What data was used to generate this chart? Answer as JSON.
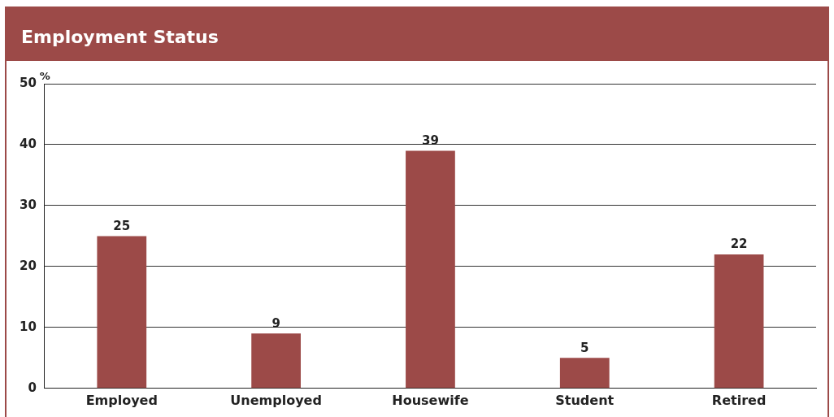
{
  "chart_data": {
    "type": "bar",
    "title": "Employment Status",
    "ylabel": "%",
    "categories": [
      "Employed",
      "Unemployed",
      "Housewife",
      "Student",
      "Retired"
    ],
    "values": [
      25,
      9,
      39,
      5,
      22
    ],
    "color": "#9c4a48",
    "ylim": [
      0,
      50
    ],
    "yticks": [
      0,
      10,
      20,
      30,
      40,
      50
    ],
    "grid": "y",
    "data_labels": true
  }
}
